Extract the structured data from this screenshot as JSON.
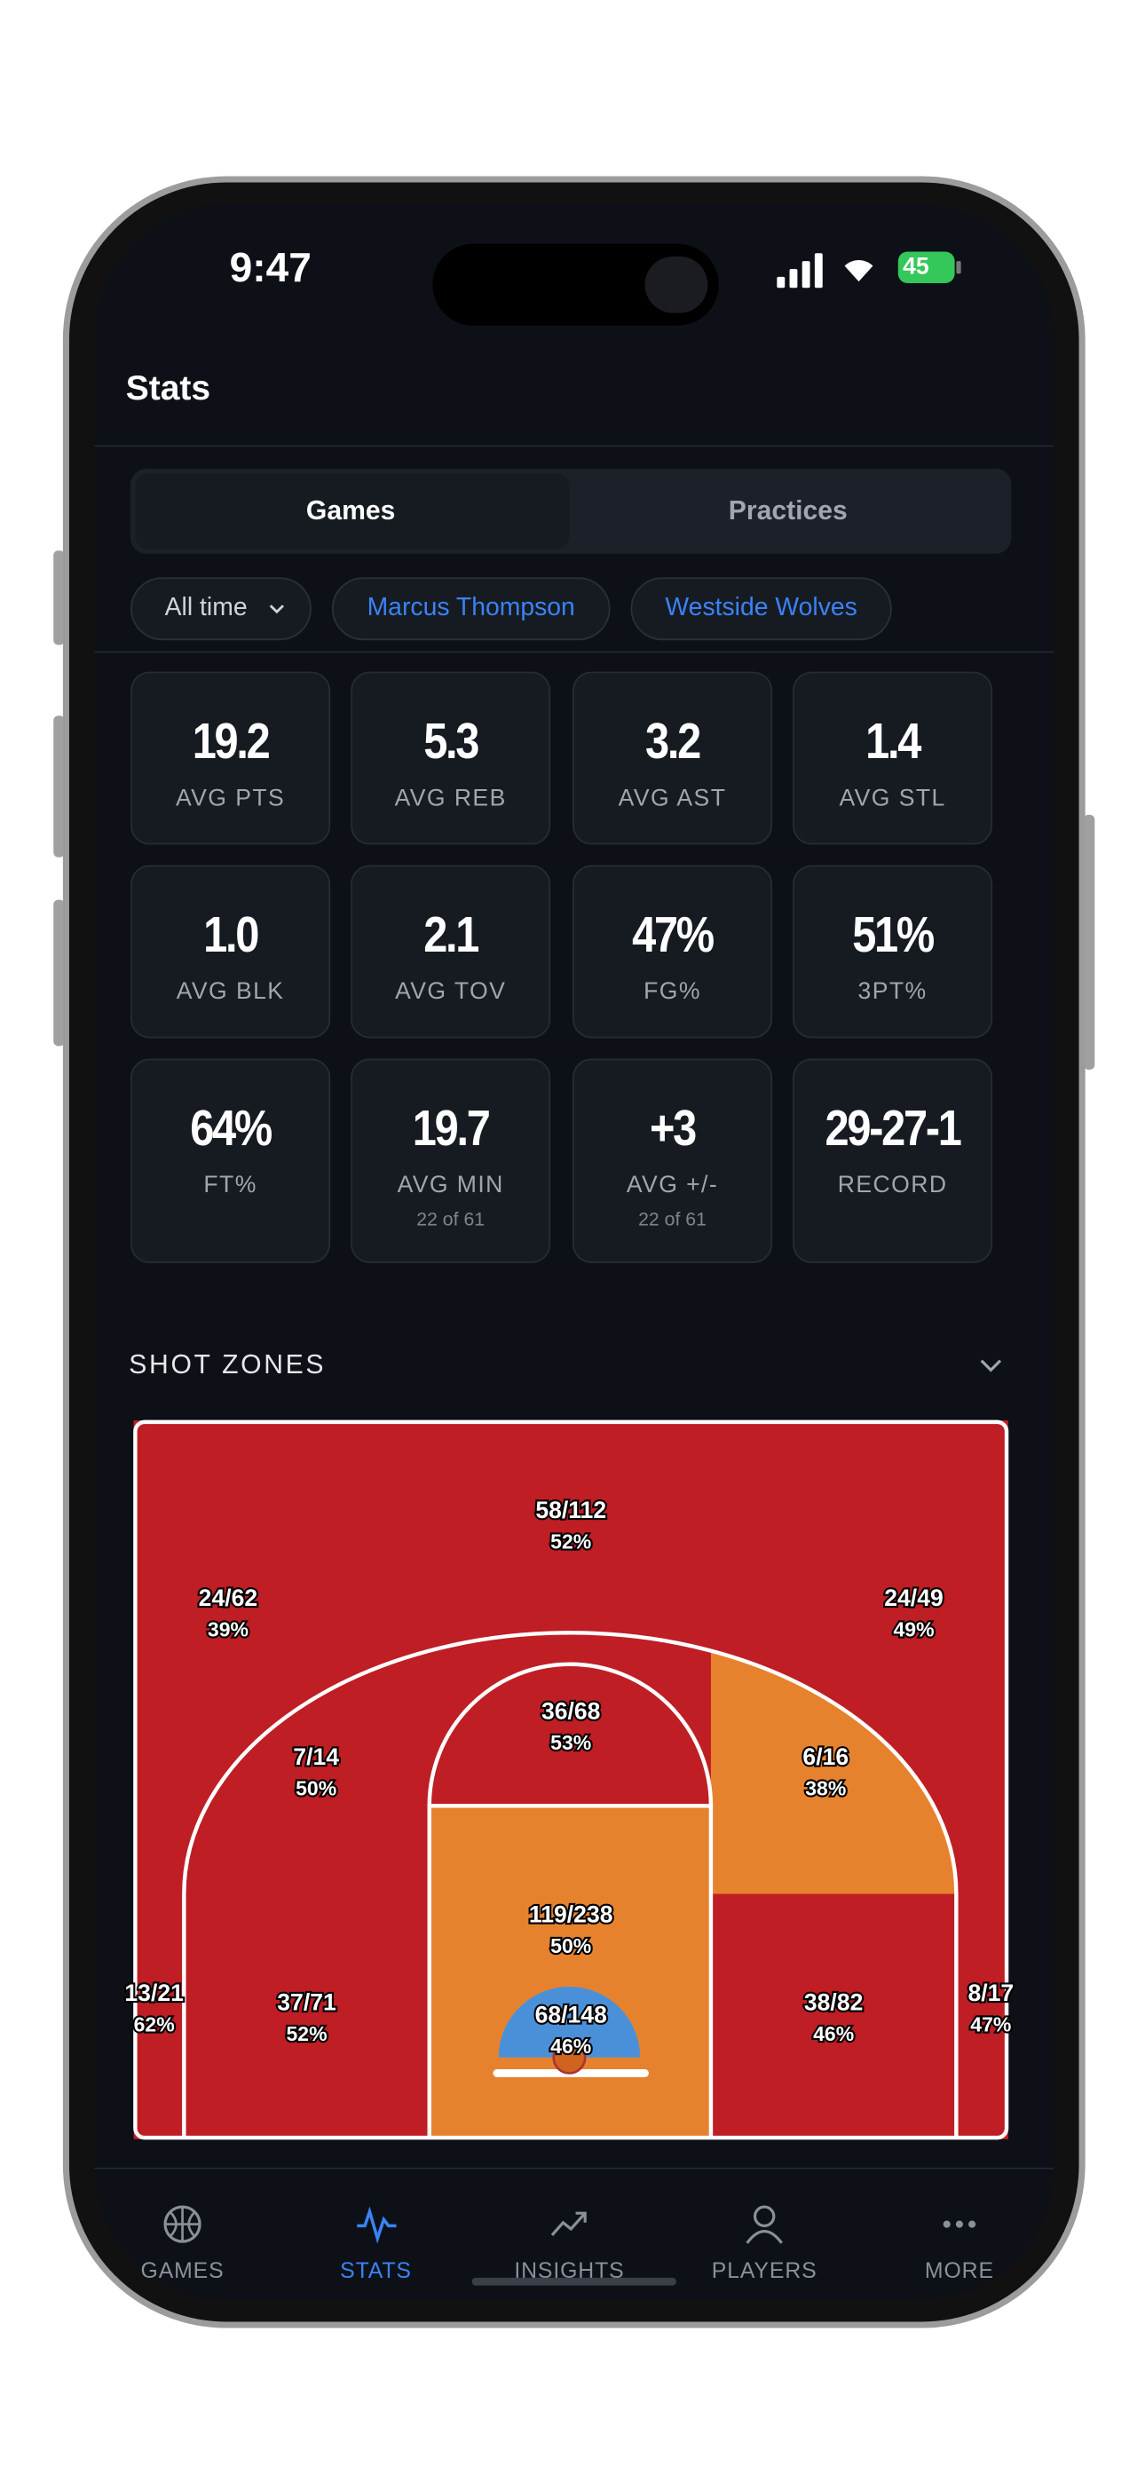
{
  "status_bar": {
    "time": "9:47",
    "battery": "45"
  },
  "header": {
    "title": "Stats"
  },
  "tabs": [
    "Games",
    "Practices"
  ],
  "filters": [
    "All time",
    "Marcus Thompson",
    "Westside Wolves"
  ],
  "stat_cards": [
    {
      "value": "19.2",
      "label": "AVG PTS"
    },
    {
      "value": "5.3",
      "label": "AVG REB"
    },
    {
      "value": "3.2",
      "label": "AVG AST"
    },
    {
      "value": "1.4",
      "label": "AVG STL"
    },
    {
      "value": "1.0",
      "label": "AVG BLK"
    },
    {
      "value": "2.1",
      "label": "AVG TOV"
    },
    {
      "value": "47%",
      "label": "FG%"
    },
    {
      "value": "51%",
      "label": "3PT%"
    },
    {
      "value": "64%",
      "label": "FT%"
    },
    {
      "value": "19.7",
      "label": "AVG MIN",
      "note": "22 of 61"
    },
    {
      "value": "+3",
      "label": "AVG +/-",
      "note": "22 of 61"
    },
    {
      "value": "29-27-1",
      "label": "RECORD"
    }
  ],
  "shot_zones": {
    "title": "SHOT ZONES",
    "zones": [
      {
        "made_attempted": "58/112",
        "percent": "52%"
      },
      {
        "made_attempted": "24/62",
        "percent": "39%"
      },
      {
        "made_attempted": "24/49",
        "percent": "49%"
      },
      {
        "made_attempted": "36/68",
        "percent": "53%"
      },
      {
        "made_attempted": "7/14",
        "percent": "50%"
      },
      {
        "made_attempted": "6/16",
        "percent": "38%"
      },
      {
        "made_attempted": "119/238",
        "percent": "50%"
      },
      {
        "made_attempted": "13/21",
        "percent": "62%"
      },
      {
        "made_attempted": "37/71",
        "percent": "52%"
      },
      {
        "made_attempted": "68/148",
        "percent": "46%"
      },
      {
        "made_attempted": "38/82",
        "percent": "46%"
      },
      {
        "made_attempted": "8/17",
        "percent": "47%"
      }
    ]
  },
  "nav": [
    "GAMES",
    "STATS",
    "INSIGHTS",
    "PLAYERS",
    "MORE"
  ]
}
